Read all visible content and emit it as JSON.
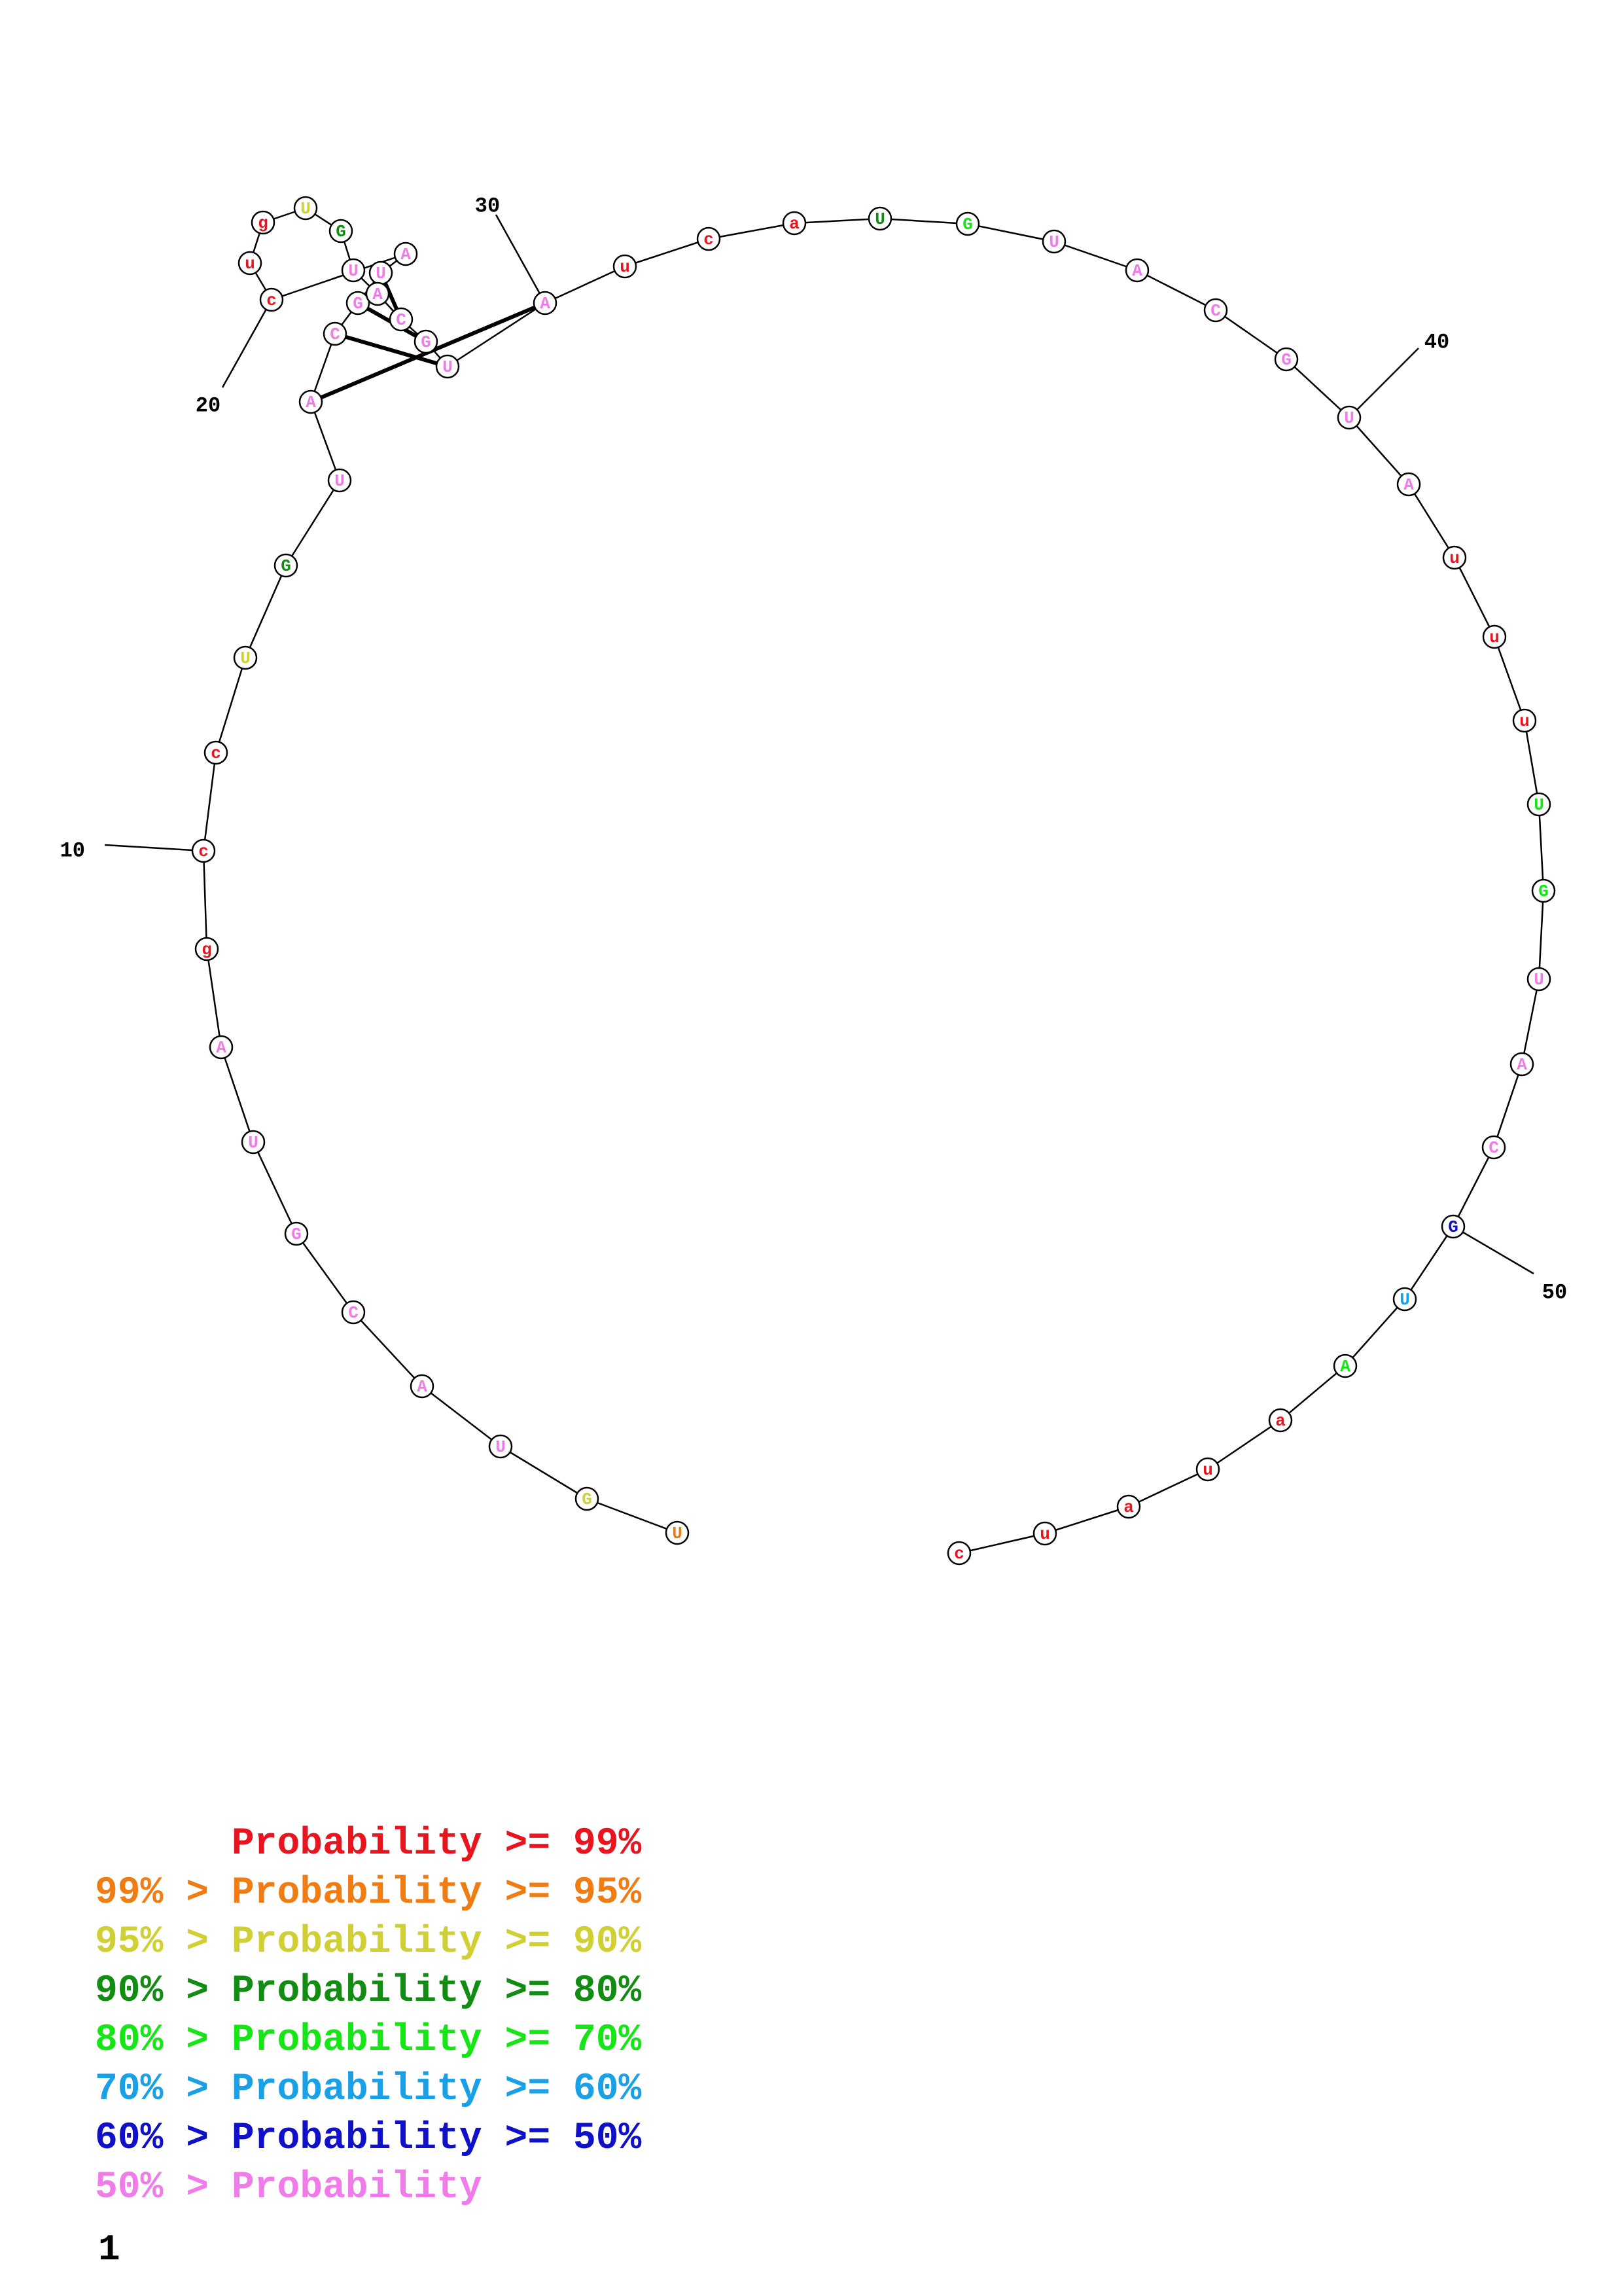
{
  "colors": {
    "c99": "#e8141e",
    "c95": "#f07d14",
    "c90": "#d0d035",
    "c80": "#138c13",
    "c70": "#16e616",
    "c60": "#1aa0e6",
    "c50": "#1010c8",
    "c0": "#ef7ce8"
  },
  "nucleotides": [
    {
      "n": 1,
      "base": "U",
      "p": "c95"
    },
    {
      "n": 2,
      "base": "G",
      "p": "c90"
    },
    {
      "n": 3,
      "base": "U",
      "p": "c0"
    },
    {
      "n": 4,
      "base": "A",
      "p": "c0"
    },
    {
      "n": 5,
      "base": "C",
      "p": "c0"
    },
    {
      "n": 6,
      "base": "G",
      "p": "c0"
    },
    {
      "n": 7,
      "base": "U",
      "p": "c0"
    },
    {
      "n": 8,
      "base": "A",
      "p": "c0"
    },
    {
      "n": 9,
      "base": "g",
      "p": "c99"
    },
    {
      "n": 10,
      "base": "c",
      "p": "c99"
    },
    {
      "n": 11,
      "base": "c",
      "p": "c99"
    },
    {
      "n": 12,
      "base": "U",
      "p": "c90"
    },
    {
      "n": 13,
      "base": "G",
      "p": "c80"
    },
    {
      "n": 14,
      "base": "U",
      "p": "c0"
    },
    {
      "n": 15,
      "base": "A",
      "p": "c0"
    },
    {
      "n": 16,
      "base": "C",
      "p": "c0"
    },
    {
      "n": 17,
      "base": "G",
      "p": "c0"
    },
    {
      "n": 18,
      "base": "U",
      "p": "c0"
    },
    {
      "n": 19,
      "base": "A",
      "p": "c0"
    },
    {
      "n": 20,
      "base": "c",
      "p": "c99"
    },
    {
      "n": 21,
      "base": "u",
      "p": "c99"
    },
    {
      "n": 22,
      "base": "g",
      "p": "c99"
    },
    {
      "n": 23,
      "base": "U",
      "p": "c90"
    },
    {
      "n": 24,
      "base": "G",
      "p": "c80"
    },
    {
      "n": 25,
      "base": "U",
      "p": "c0"
    },
    {
      "n": 26,
      "base": "A",
      "p": "c0"
    },
    {
      "n": 27,
      "base": "C",
      "p": "c0"
    },
    {
      "n": 28,
      "base": "G",
      "p": "c0"
    },
    {
      "n": 29,
      "base": "U",
      "p": "c0"
    },
    {
      "n": 30,
      "base": "A",
      "p": "c0"
    },
    {
      "n": 31,
      "base": "u",
      "p": "c99"
    },
    {
      "n": 32,
      "base": "c",
      "p": "c99"
    },
    {
      "n": 33,
      "base": "a",
      "p": "c99"
    },
    {
      "n": 34,
      "base": "U",
      "p": "c80"
    },
    {
      "n": 35,
      "base": "G",
      "p": "c70"
    },
    {
      "n": 36,
      "base": "U",
      "p": "c0"
    },
    {
      "n": 37,
      "base": "A",
      "p": "c0"
    },
    {
      "n": 38,
      "base": "C",
      "p": "c0"
    },
    {
      "n": 39,
      "base": "G",
      "p": "c0"
    },
    {
      "n": 40,
      "base": "U",
      "p": "c0"
    },
    {
      "n": 41,
      "base": "A",
      "p": "c0"
    },
    {
      "n": 42,
      "base": "u",
      "p": "c99"
    },
    {
      "n": 43,
      "base": "u",
      "p": "c99"
    },
    {
      "n": 44,
      "base": "u",
      "p": "c99"
    },
    {
      "n": 45,
      "base": "U",
      "p": "c70"
    },
    {
      "n": 46,
      "base": "G",
      "p": "c70"
    },
    {
      "n": 47,
      "base": "U",
      "p": "c0"
    },
    {
      "n": 48,
      "base": "A",
      "p": "c0"
    },
    {
      "n": 49,
      "base": "C",
      "p": "c0"
    },
    {
      "n": 50,
      "base": "G",
      "p": "c50"
    },
    {
      "n": 51,
      "base": "U",
      "p": "c60"
    },
    {
      "n": 52,
      "base": "A",
      "p": "c70"
    },
    {
      "n": 53,
      "base": "a",
      "p": "c99"
    },
    {
      "n": 54,
      "base": "u",
      "p": "c99"
    },
    {
      "n": 55,
      "base": "a",
      "p": "c99"
    },
    {
      "n": 56,
      "base": "u",
      "p": "c99"
    },
    {
      "n": 57,
      "base": "c",
      "p": "c99"
    }
  ],
  "base_pairs": [
    [
      15,
      30
    ],
    [
      16,
      29
    ],
    [
      17,
      28
    ],
    [
      18,
      27
    ]
  ],
  "position_labels": [
    {
      "n": 10,
      "label": "10"
    },
    {
      "n": 20,
      "label": "20"
    },
    {
      "n": 30,
      "label": "30"
    },
    {
      "n": 40,
      "label": "40"
    },
    {
      "n": 50,
      "label": "50"
    }
  ],
  "legend": [
    {
      "prefix": "      ",
      "text": "Probability >= 99%",
      "color_key": "c99"
    },
    {
      "prefix": "99% > ",
      "text": "Probability >= 95%",
      "color_key": "c95"
    },
    {
      "prefix": "95% > ",
      "text": "Probability >= 90%",
      "color_key": "c90"
    },
    {
      "prefix": "90% > ",
      "text": "Probability >= 80%",
      "color_key": "c80"
    },
    {
      "prefix": "80% > ",
      "text": "Probability >= 70%",
      "color_key": "c70"
    },
    {
      "prefix": "70% > ",
      "text": "Probability >= 60%",
      "color_key": "c60"
    },
    {
      "prefix": "60% > ",
      "text": "Probability >= 50%",
      "color_key": "c50"
    },
    {
      "prefix": "50% > ",
      "text": "Probability",
      "color_key": "c0"
    }
  ],
  "page_number": "1"
}
